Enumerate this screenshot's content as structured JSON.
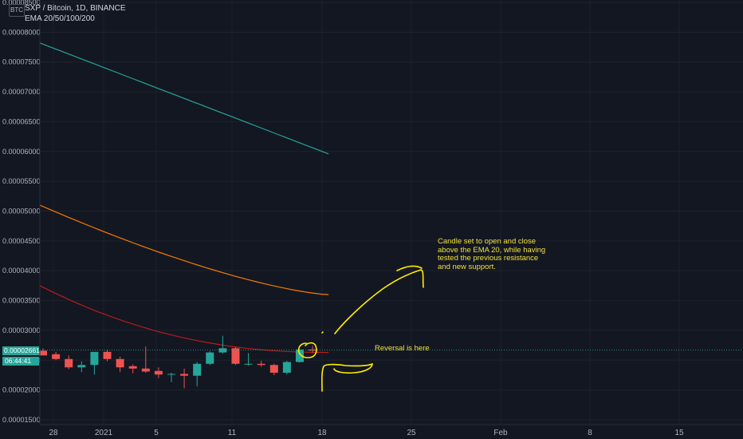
{
  "header": {
    "symbol_badge": "BTC",
    "title": "SXP / Bitcoin, 1D, BINANCE",
    "indicator": "EMA 20/50/100/200"
  },
  "price_tag": {
    "price": "0.00002661",
    "countdown": "06:44:41"
  },
  "annotations": {
    "note": "Candle set to open and close above the EMA 20, while having tested the previous resistance and new support.",
    "reversal": "Reversal is here"
  },
  "colors": {
    "background": "#131722",
    "up": "#26a69a",
    "down": "#ef5350",
    "ema_teal": "#26a69a",
    "ema_orange": "#f57c00",
    "ema_red": "#b71c1c",
    "marker": "#ffee00"
  },
  "chart_data": {
    "type": "candlestick",
    "y_ticks": [
      "0.00008500",
      "0.00008000",
      "0.00007500",
      "0.00007000",
      "0.00006500",
      "0.00006000",
      "0.00005500",
      "0.00005000",
      "0.00004500",
      "0.00004000",
      "0.00003500",
      "0.00003000",
      "0.00002500",
      "0.00002000",
      "0.00001500"
    ],
    "x_ticks": [
      "28",
      "2021",
      "5",
      "11",
      "18",
      "25",
      "Feb",
      "8",
      "15"
    ],
    "ylim": [
      1.4e-05,
      8.55e-05
    ],
    "candles": [
      {
        "o": 2.66e-05,
        "h": 2.7e-05,
        "l": 2.58e-05,
        "c": 2.58e-05
      },
      {
        "o": 2.6e-05,
        "h": 2.64e-05,
        "l": 2.5e-05,
        "c": 2.52e-05
      },
      {
        "o": 2.52e-05,
        "h": 2.58e-05,
        "l": 2.35e-05,
        "c": 2.38e-05
      },
      {
        "o": 2.38e-05,
        "h": 2.48e-05,
        "l": 2.3e-05,
        "c": 2.42e-05
      },
      {
        "o": 2.42e-05,
        "h": 2.64e-05,
        "l": 2.26e-05,
        "c": 2.64e-05
      },
      {
        "o": 2.64e-05,
        "h": 2.68e-05,
        "l": 2.48e-05,
        "c": 2.52e-05
      },
      {
        "o": 2.52e-05,
        "h": 2.56e-05,
        "l": 2.3e-05,
        "c": 2.38e-05
      },
      {
        "o": 2.4e-05,
        "h": 2.43e-05,
        "l": 2.28e-05,
        "c": 2.36e-05
      },
      {
        "o": 2.36e-05,
        "h": 2.73e-05,
        "l": 2.29e-05,
        "c": 2.31e-05
      },
      {
        "o": 2.32e-05,
        "h": 2.38e-05,
        "l": 2.2e-05,
        "c": 2.26e-05
      },
      {
        "o": 2.26e-05,
        "h": 2.29e-05,
        "l": 2.13e-05,
        "c": 2.27e-05
      },
      {
        "o": 2.27e-05,
        "h": 2.36e-05,
        "l": 2.03e-05,
        "c": 2.24e-05
      },
      {
        "o": 2.24e-05,
        "h": 2.47e-05,
        "l": 2.06e-05,
        "c": 2.44e-05
      },
      {
        "o": 2.44e-05,
        "h": 2.65e-05,
        "l": 2.42e-05,
        "c": 2.63e-05
      },
      {
        "o": 2.63e-05,
        "h": 2.91e-05,
        "l": 2.61e-05,
        "c": 2.7e-05
      },
      {
        "o": 2.7e-05,
        "h": 2.72e-05,
        "l": 2.42e-05,
        "c": 2.44e-05
      },
      {
        "o": 2.44e-05,
        "h": 2.62e-05,
        "l": 2.41e-05,
        "c": 2.44e-05
      },
      {
        "o": 2.44e-05,
        "h": 2.49e-05,
        "l": 2.39e-05,
        "c": 2.42e-05
      },
      {
        "o": 2.42e-05,
        "h": 2.44e-05,
        "l": 2.25e-05,
        "c": 2.29e-05
      },
      {
        "o": 2.29e-05,
        "h": 2.49e-05,
        "l": 2.26e-05,
        "c": 2.47e-05
      },
      {
        "o": 2.47e-05,
        "h": 2.68e-05,
        "l": 2.46e-05,
        "c": 2.68e-05
      },
      {
        "o": 2.68e-05,
        "h": 2.74e-05,
        "l": 2.62e-05,
        "c": 2.661e-05
      }
    ]
  }
}
